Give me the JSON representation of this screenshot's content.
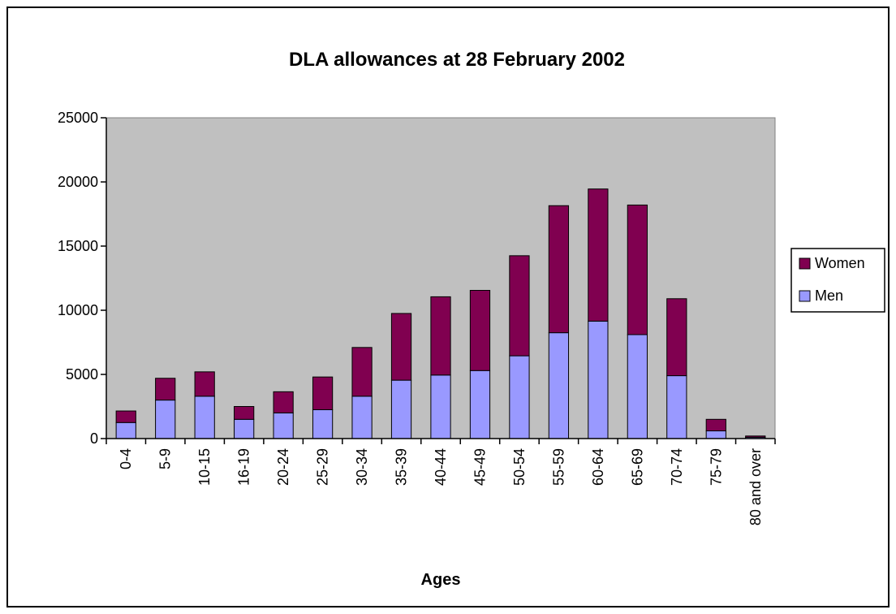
{
  "chart_data": {
    "type": "bar",
    "stacked": true,
    "title": "DLA allowances at 28 February 2002",
    "xlabel": "Ages",
    "ylabel": "",
    "ylim": [
      0,
      25000
    ],
    "yticks": [
      0,
      5000,
      10000,
      15000,
      20000,
      25000
    ],
    "grid": false,
    "legend_position": "right",
    "plot_background": "#c0c0c0",
    "categories": [
      "0-4",
      "5-9",
      "10-15",
      "16-19",
      "20-24",
      "25-29",
      "30-34",
      "35-39",
      "40-44",
      "45-49",
      "50-54",
      "55-59",
      "60-64",
      "65-69",
      "70-74",
      "75-79",
      "80 and over"
    ],
    "series": [
      {
        "name": "Men",
        "color": "#9999ff",
        "values": [
          1250,
          3000,
          3300,
          1500,
          2000,
          2250,
          3300,
          4550,
          4950,
          5300,
          6450,
          8250,
          9150,
          8100,
          4900,
          600,
          100
        ]
      },
      {
        "name": "Women",
        "color": "#800050",
        "values": [
          900,
          1700,
          1900,
          1000,
          1650,
          2550,
          3800,
          5200,
          6100,
          6250,
          7800,
          9900,
          10300,
          10100,
          6000,
          900,
          100
        ]
      }
    ]
  }
}
